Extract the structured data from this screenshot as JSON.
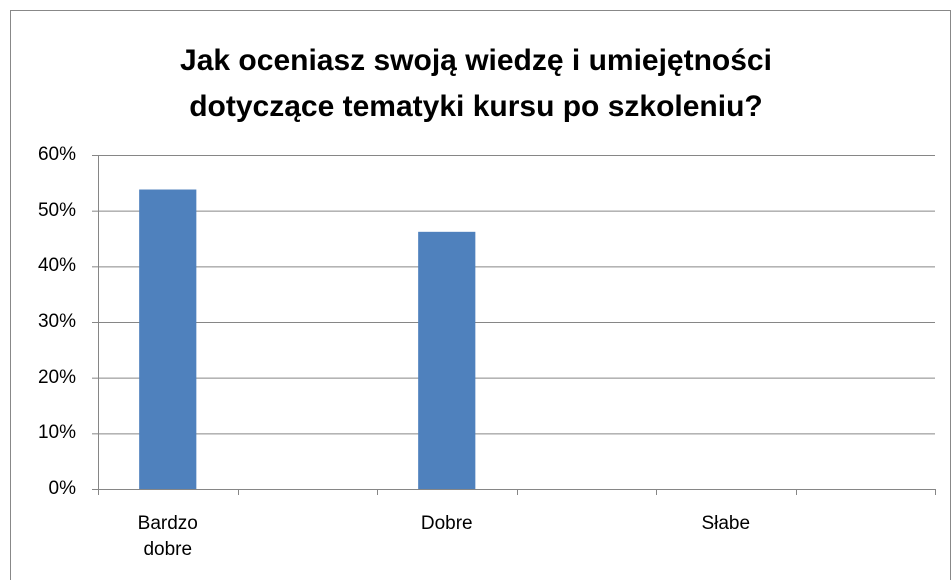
{
  "chart_data": {
    "type": "bar",
    "title": "Jak oceniasz swoją wiedzę i umiejętności dotyczące tematyki kursu po szkoleniu?",
    "categories": [
      "Bardzo dobre",
      null,
      "Dobre",
      null,
      "Słabe",
      null
    ],
    "values": [
      53.8,
      null,
      46.2,
      null,
      0,
      null
    ],
    "color": "#4f81bd",
    "ylim": [
      0,
      60
    ],
    "yticks": [
      {
        "value": 0,
        "label": "0%"
      },
      {
        "value": 10,
        "label": "10%"
      },
      {
        "value": 20,
        "label": "20%"
      },
      {
        "value": 30,
        "label": "30%"
      },
      {
        "value": 40,
        "label": "40%"
      },
      {
        "value": 50,
        "label": "50%"
      },
      {
        "value": 60,
        "label": "60%"
      }
    ],
    "grid": true
  }
}
